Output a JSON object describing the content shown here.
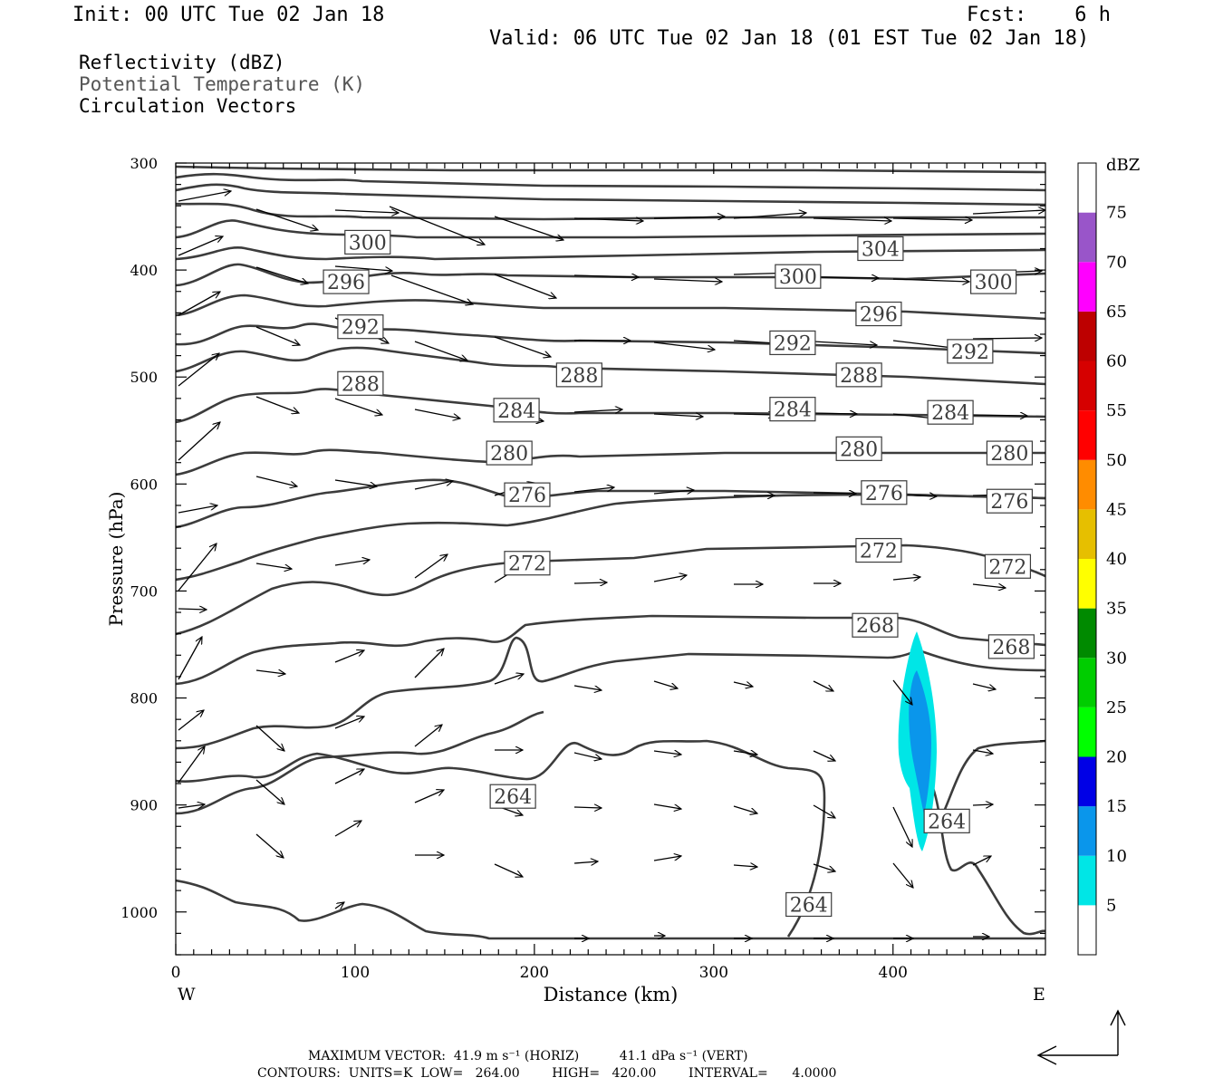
{
  "header": {
    "init": "Init: 00 UTC Tue 02 Jan 18",
    "fcst": "Fcst:    6 h",
    "valid": "Valid: 06 UTC Tue 02 Jan 18 (01 EST Tue 02 Jan 18)"
  },
  "fields": {
    "reflectivity": "Reflectivity (dBZ)",
    "theta": "Potential Temperature (K)",
    "vectors": "Circulation Vectors"
  },
  "footer": {
    "max_vector_line": "MAXIMUM VECTOR:  41.9 m s⁻¹ (HORIZ)          41.1 dPa s⁻¹ (VERT)",
    "contours_line": "CONTOURS:  UNITS=K  LOW=   264.00        HIGH=   420.00        INTERVAL=      4.0000"
  },
  "colors": {
    "contour": "#3c3c3c",
    "refl_5": "#00e6e6",
    "refl_10": "#0a96eb"
  },
  "chart_data": {
    "type": "contour",
    "xlabel": "Distance (km)",
    "ylabel": "Pressure (hPa)",
    "xlim": [
      0,
      485
    ],
    "ylim": [
      1040,
      300
    ],
    "xticks": [
      0,
      100,
      200,
      300,
      400
    ],
    "yticks": [
      300,
      400,
      500,
      600,
      700,
      800,
      900,
      1000
    ],
    "x_end_labels": {
      "left": "W",
      "right": "E"
    },
    "colorbar": {
      "unit": "dBZ",
      "levels": [
        5,
        10,
        15,
        20,
        25,
        30,
        35,
        40,
        45,
        50,
        55,
        60,
        65,
        70,
        75
      ],
      "colors": [
        "#00e6e6",
        "#0a96eb",
        "#0000e6",
        "#00ff00",
        "#00cd00",
        "#008a00",
        "#ffff00",
        "#e6bf00",
        "#ff8c00",
        "#ff0000",
        "#d60000",
        "#bd0000",
        "#ff00ff",
        "#9955c9",
        "#ffffff"
      ]
    },
    "theta_labels": [
      {
        "text": "300",
        "x": 107,
        "p": 374
      },
      {
        "text": "304",
        "x": 393,
        "p": 380
      },
      {
        "text": "296",
        "x": 95,
        "p": 411
      },
      {
        "text": "300",
        "x": 347,
        "p": 406
      },
      {
        "text": "300",
        "x": 456,
        "p": 411
      },
      {
        "text": "296",
        "x": 392,
        "p": 441
      },
      {
        "text": "292",
        "x": 103,
        "p": 453
      },
      {
        "text": "292",
        "x": 344,
        "p": 468
      },
      {
        "text": "292",
        "x": 443,
        "p": 476
      },
      {
        "text": "288",
        "x": 225,
        "p": 498
      },
      {
        "text": "288",
        "x": 381,
        "p": 498
      },
      {
        "text": "288",
        "x": 103,
        "p": 506
      },
      {
        "text": "284",
        "x": 190,
        "p": 531
      },
      {
        "text": "284",
        "x": 344,
        "p": 530
      },
      {
        "text": "284",
        "x": 432,
        "p": 533
      },
      {
        "text": "280",
        "x": 186,
        "p": 571
      },
      {
        "text": "280",
        "x": 381,
        "p": 567
      },
      {
        "text": "280",
        "x": 465,
        "p": 571
      },
      {
        "text": "276",
        "x": 196,
        "p": 610
      },
      {
        "text": "276",
        "x": 395,
        "p": 608
      },
      {
        "text": "276",
        "x": 465,
        "p": 616
      },
      {
        "text": "272",
        "x": 392,
        "p": 662
      },
      {
        "text": "272",
        "x": 196,
        "p": 674
      },
      {
        "text": "272",
        "x": 464,
        "p": 677
      },
      {
        "text": "268",
        "x": 390,
        "p": 732
      },
      {
        "text": "268",
        "x": 466,
        "p": 752
      },
      {
        "text": "264",
        "x": 188,
        "p": 892
      },
      {
        "text": "264",
        "x": 430,
        "p": 915
      },
      {
        "text": "264",
        "x": 353,
        "p": 993
      }
    ],
    "max_vector": {
      "horiz_m_s": 41.9,
      "vert_dPa_s": 41.1
    },
    "contours": {
      "units": "K",
      "low": 264.0,
      "high": 420.0,
      "interval": 4.0
    }
  }
}
